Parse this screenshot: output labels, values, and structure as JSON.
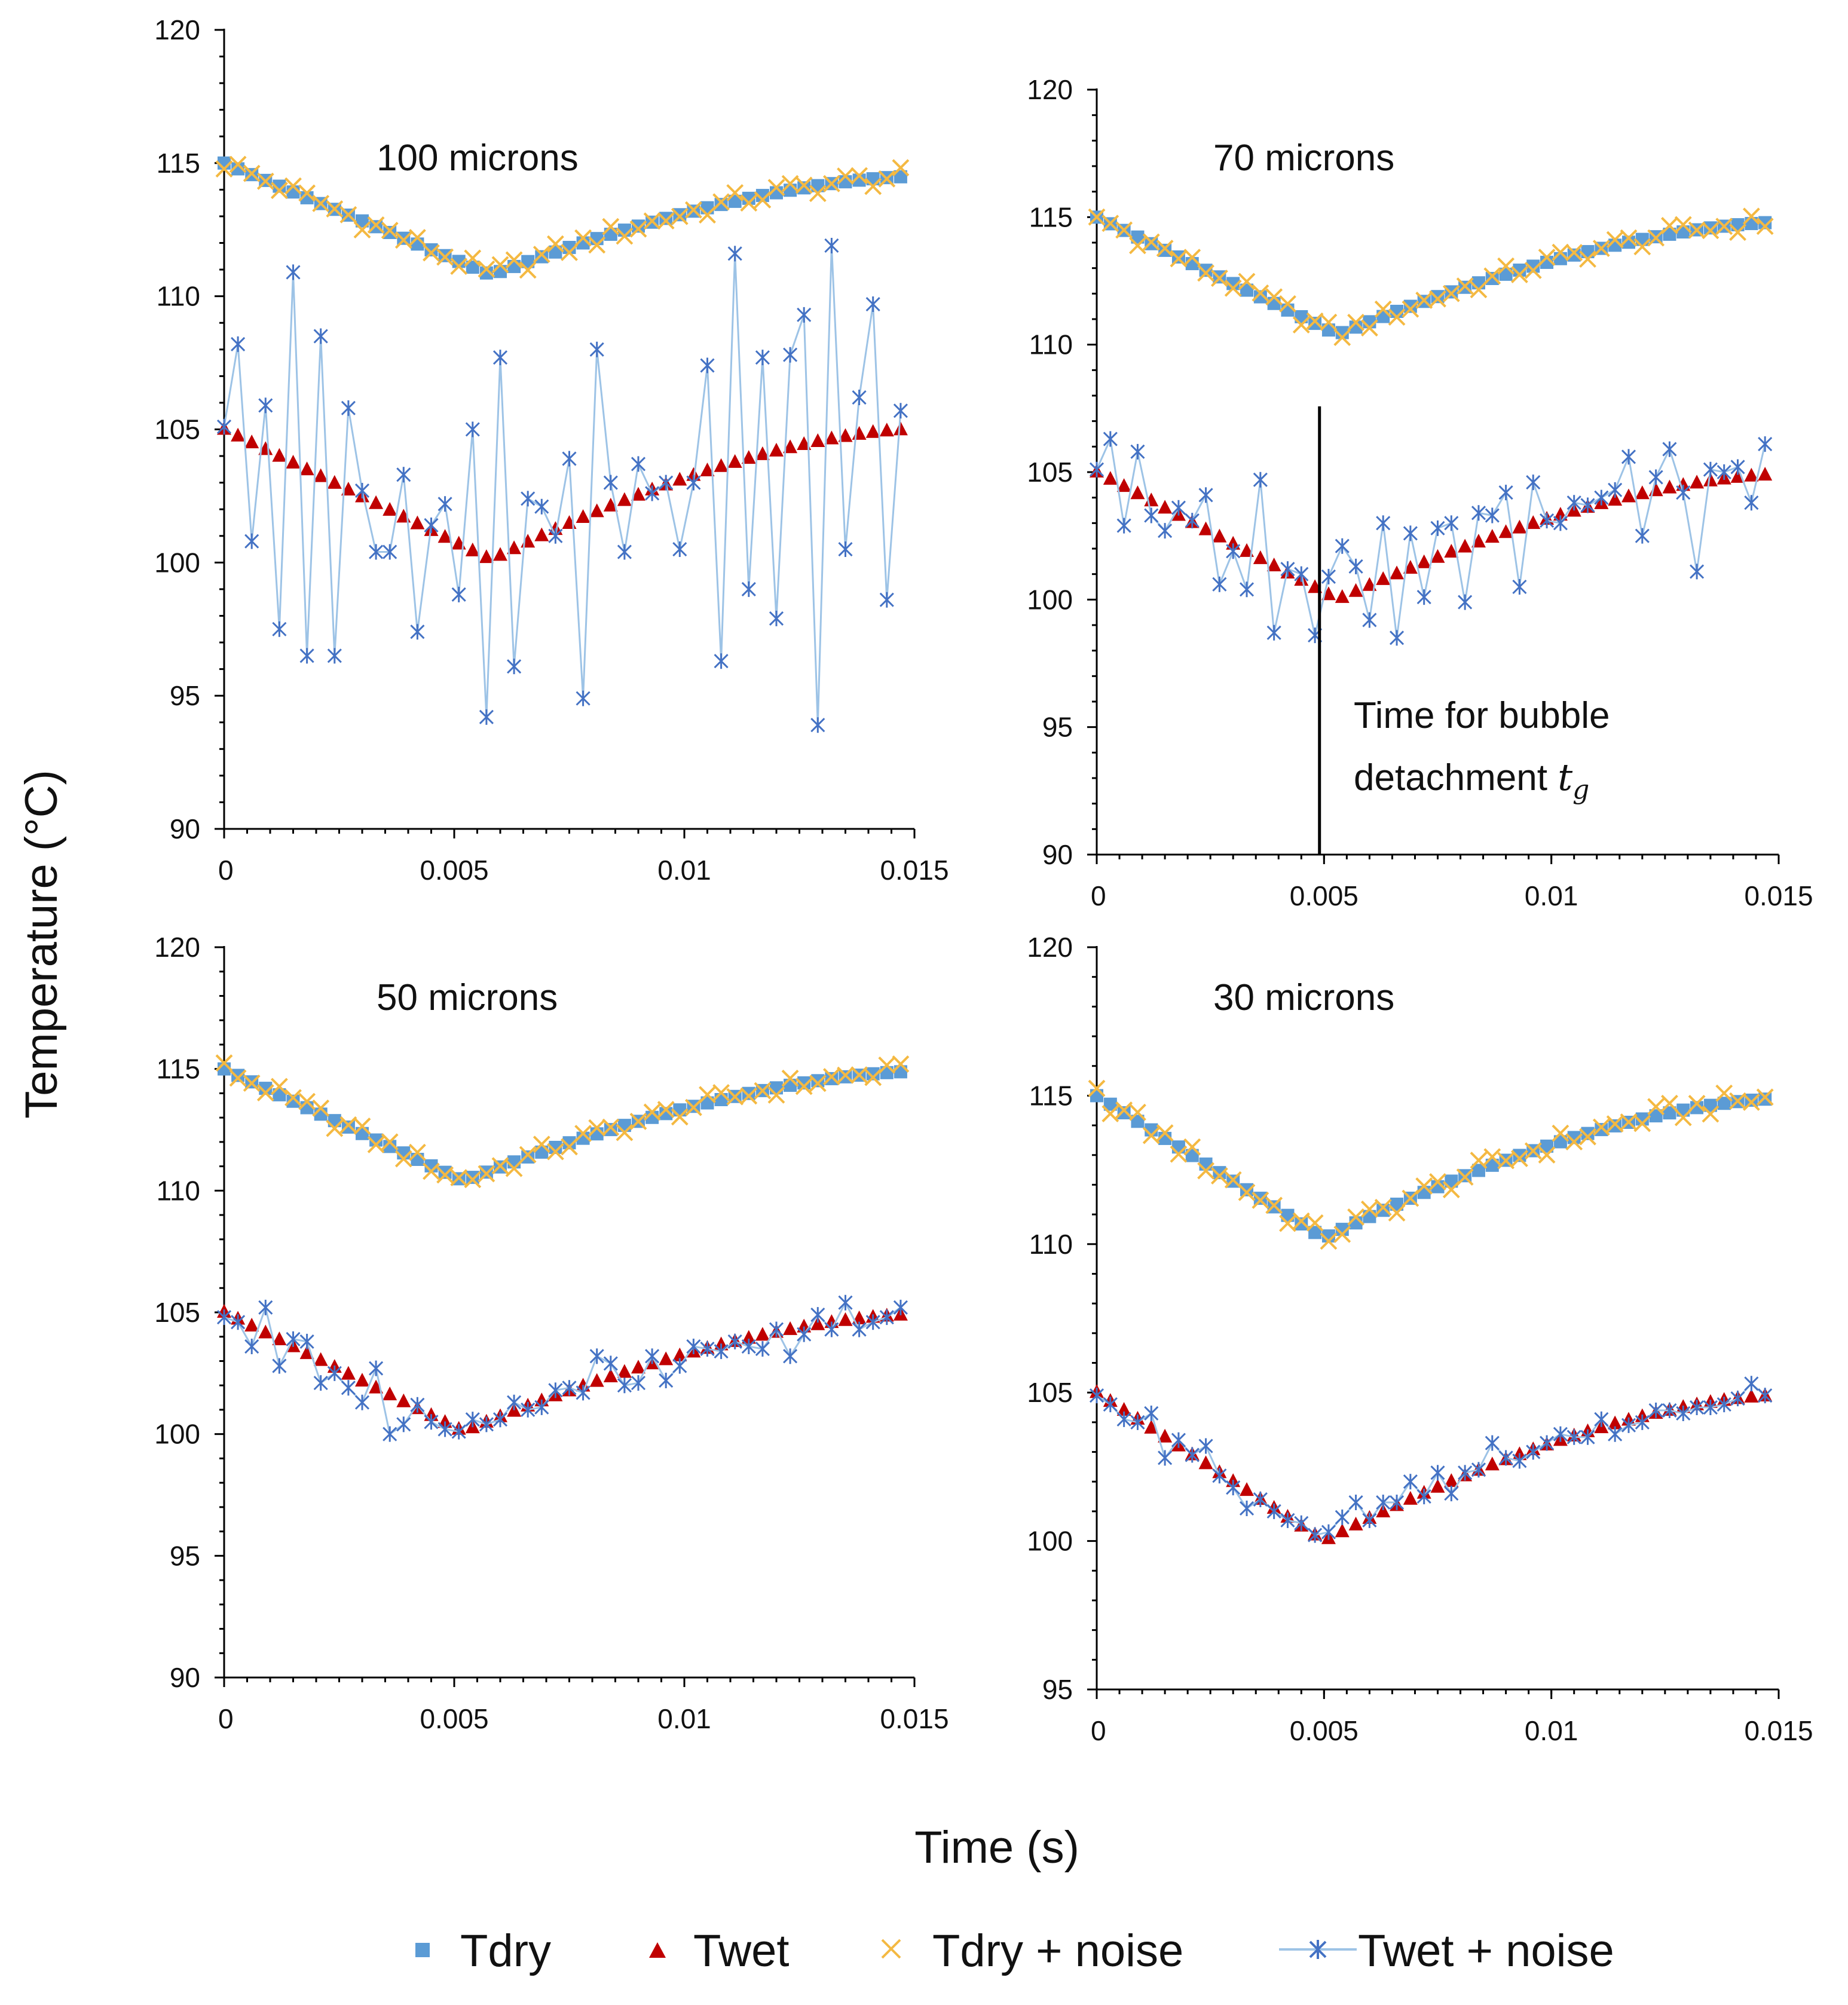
{
  "colors": {
    "tdry": "#5b9bd5",
    "twet": "#c00000",
    "tdry_noise": "#f4b942",
    "twet_noise_line": "#9dc3e6",
    "twet_noise_marker": "#4472c4"
  },
  "chart_data": [
    {
      "type": "scatter",
      "title": "100 microns",
      "xlim": [
        0,
        0.015
      ],
      "ylim": [
        90,
        120
      ],
      "yticks": [
        90,
        95,
        100,
        105,
        110,
        115,
        120
      ],
      "xticks": [
        0,
        0.005,
        0.01,
        0.015
      ],
      "xticklabels": [
        "0",
        "0.005",
        "0.01",
        "0.015"
      ],
      "t_min": 0.0058,
      "tdry_start": 115,
      "tdry_min": 110.8,
      "tdry_end": 114.5,
      "twet_start": 105,
      "twet_min": 100.1,
      "twet_end": 105,
      "twet_noise": [
        [
          0,
          105.1
        ],
        [
          0.0003,
          108.2
        ],
        [
          0.0006,
          100.8
        ],
        [
          0.0009,
          105.9
        ],
        [
          0.0012,
          97.5
        ],
        [
          0.0015,
          110.9
        ],
        [
          0.0018,
          96.5
        ],
        [
          0.0021,
          108.5
        ],
        [
          0.0024,
          96.5
        ],
        [
          0.0027,
          105.8
        ],
        [
          0.003,
          102.7
        ],
        [
          0.0033,
          100.4
        ],
        [
          0.0036,
          100.4
        ],
        [
          0.0039,
          103.3
        ],
        [
          0.0042,
          97.4
        ],
        [
          0.0045,
          101.4
        ],
        [
          0.0048,
          102.2
        ],
        [
          0.0051,
          98.8
        ],
        [
          0.0054,
          105.0
        ],
        [
          0.0057,
          94.2
        ],
        [
          0.006,
          107.7
        ],
        [
          0.0063,
          96.1
        ],
        [
          0.0066,
          102.4
        ],
        [
          0.0069,
          102.1
        ],
        [
          0.0072,
          101.0
        ],
        [
          0.0075,
          103.9
        ],
        [
          0.0078,
          94.9
        ],
        [
          0.0081,
          108.0
        ],
        [
          0.0084,
          103.0
        ],
        [
          0.0087,
          100.4
        ],
        [
          0.009,
          103.7
        ],
        [
          0.0093,
          102.6
        ],
        [
          0.0096,
          103.0
        ],
        [
          0.0099,
          100.5
        ],
        [
          0.0102,
          103.0
        ],
        [
          0.0105,
          107.4
        ],
        [
          0.0108,
          96.3
        ],
        [
          0.0111,
          111.6
        ],
        [
          0.0114,
          99.0
        ],
        [
          0.0117,
          107.7
        ],
        [
          0.012,
          97.9
        ],
        [
          0.0123,
          107.8
        ],
        [
          0.0126,
          109.3
        ],
        [
          0.0129,
          93.9
        ],
        [
          0.0132,
          111.9
        ],
        [
          0.0135,
          100.5
        ],
        [
          0.0138,
          106.2
        ],
        [
          0.0141,
          109.7
        ],
        [
          0.0144,
          98.6
        ],
        [
          0.0147,
          105.7
        ]
      ]
    },
    {
      "type": "scatter",
      "title": "70 microns",
      "xlim": [
        0,
        0.015
      ],
      "ylim": [
        90,
        120
      ],
      "yticks": [
        90,
        95,
        100,
        105,
        110,
        115,
        120
      ],
      "xticks": [
        0,
        0.005,
        0.01,
        0.015
      ],
      "xticklabels": [
        "0",
        "0.005",
        "0.01",
        "0.015"
      ],
      "t_min": 0.0053,
      "tdry_start": 115,
      "tdry_min": 110.4,
      "tdry_end": 114.8,
      "twet_start": 105,
      "twet_min": 100.0,
      "twet_end": 104.9,
      "vline_x": 0.0049,
      "annotation_line1": "Time for bubble",
      "annotation_line2": "detachment ",
      "annotation_symbol": "t",
      "annotation_sub": "g",
      "twet_noise": [
        [
          0,
          105.1
        ],
        [
          0.0003,
          106.3
        ],
        [
          0.0006,
          102.9
        ],
        [
          0.0009,
          105.8
        ],
        [
          0.0012,
          103.3
        ],
        [
          0.0015,
          102.7
        ],
        [
          0.0018,
          103.6
        ],
        [
          0.0021,
          103.1
        ],
        [
          0.0024,
          104.1
        ],
        [
          0.0027,
          100.6
        ],
        [
          0.003,
          101.9
        ],
        [
          0.0033,
          100.4
        ],
        [
          0.0036,
          104.7
        ],
        [
          0.0039,
          98.7
        ],
        [
          0.0042,
          101.2
        ],
        [
          0.0045,
          101.0
        ],
        [
          0.0048,
          98.6
        ],
        [
          0.0051,
          100.9
        ],
        [
          0.0054,
          102.1
        ],
        [
          0.0057,
          101.3
        ],
        [
          0.006,
          99.2
        ],
        [
          0.0063,
          103.0
        ],
        [
          0.0066,
          98.5
        ],
        [
          0.0069,
          102.6
        ],
        [
          0.0072,
          100.1
        ],
        [
          0.0075,
          102.8
        ],
        [
          0.0078,
          103.0
        ],
        [
          0.0081,
          99.9
        ],
        [
          0.0084,
          103.4
        ],
        [
          0.0087,
          103.3
        ],
        [
          0.009,
          104.2
        ],
        [
          0.0093,
          100.5
        ],
        [
          0.0096,
          104.6
        ],
        [
          0.0099,
          103.1
        ],
        [
          0.0102,
          103.0
        ],
        [
          0.0105,
          103.8
        ],
        [
          0.0108,
          103.7
        ],
        [
          0.0111,
          104.0
        ],
        [
          0.0114,
          104.3
        ],
        [
          0.0117,
          105.6
        ],
        [
          0.012,
          102.5
        ],
        [
          0.0123,
          104.8
        ],
        [
          0.0126,
          105.9
        ],
        [
          0.0129,
          104.2
        ],
        [
          0.0132,
          101.1
        ],
        [
          0.0135,
          105.1
        ],
        [
          0.0138,
          105.0
        ],
        [
          0.0141,
          105.2
        ],
        [
          0.0144,
          103.8
        ],
        [
          0.0147,
          106.1
        ]
      ]
    },
    {
      "type": "scatter",
      "title": "50 microns",
      "xlim": [
        0,
        0.015
      ],
      "ylim": [
        90,
        120
      ],
      "yticks": [
        90,
        95,
        100,
        105,
        110,
        115,
        120
      ],
      "xticks": [
        0,
        0.005,
        0.01,
        0.015
      ],
      "xticklabels": [
        "0",
        "0.005",
        "0.01",
        "0.015"
      ],
      "t_min": 0.0052,
      "tdry_start": 115,
      "tdry_min": 110.4,
      "tdry_end": 114.9,
      "twet_start": 105,
      "twet_min": 100.1,
      "twet_end": 104.9,
      "twet_noise": [
        [
          0,
          104.8
        ],
        [
          0.0003,
          104.6
        ],
        [
          0.0006,
          103.6
        ],
        [
          0.0009,
          105.2
        ],
        [
          0.0012,
          102.8
        ],
        [
          0.0015,
          103.9
        ],
        [
          0.0018,
          103.8
        ],
        [
          0.0021,
          102.1
        ],
        [
          0.0024,
          102.5
        ],
        [
          0.0027,
          101.9
        ],
        [
          0.003,
          101.3
        ],
        [
          0.0033,
          102.7
        ],
        [
          0.0036,
          100.0
        ],
        [
          0.0039,
          100.4
        ],
        [
          0.0042,
          101.2
        ],
        [
          0.0045,
          100.5
        ],
        [
          0.0048,
          100.2
        ],
        [
          0.0051,
          100.1
        ],
        [
          0.0054,
          100.6
        ],
        [
          0.0057,
          100.4
        ],
        [
          0.006,
          100.6
        ],
        [
          0.0063,
          101.3
        ],
        [
          0.0066,
          101.0
        ],
        [
          0.0069,
          101.1
        ],
        [
          0.0072,
          101.8
        ],
        [
          0.0075,
          101.9
        ],
        [
          0.0078,
          101.7
        ],
        [
          0.0081,
          103.2
        ],
        [
          0.0084,
          102.9
        ],
        [
          0.0087,
          102.0
        ],
        [
          0.009,
          102.1
        ],
        [
          0.0093,
          103.2
        ],
        [
          0.0096,
          102.2
        ],
        [
          0.0099,
          102.8
        ],
        [
          0.0102,
          103.6
        ],
        [
          0.0105,
          103.5
        ],
        [
          0.0108,
          103.4
        ],
        [
          0.0111,
          103.8
        ],
        [
          0.0114,
          103.6
        ],
        [
          0.0117,
          103.5
        ],
        [
          0.012,
          104.3
        ],
        [
          0.0123,
          103.2
        ],
        [
          0.0126,
          104.1
        ],
        [
          0.0129,
          104.9
        ],
        [
          0.0132,
          104.3
        ],
        [
          0.0135,
          105.4
        ],
        [
          0.0138,
          104.3
        ],
        [
          0.0141,
          104.6
        ],
        [
          0.0144,
          104.8
        ],
        [
          0.0147,
          105.2
        ]
      ]
    },
    {
      "type": "scatter",
      "title": "30 microns",
      "xlim": [
        0,
        0.015
      ],
      "ylim": [
        95,
        120
      ],
      "yticks": [
        95,
        100,
        105,
        110,
        115,
        120
      ],
      "xticks": [
        0,
        0.005,
        0.01,
        0.015
      ],
      "xticklabels": [
        "0",
        "0.005",
        "0.01",
        "0.015"
      ],
      "t_min": 0.005,
      "tdry_start": 115,
      "tdry_min": 110.2,
      "tdry_end": 114.9,
      "twet_start": 105,
      "twet_min": 100.0,
      "twet_end": 104.9,
      "twet_noise": [
        [
          0,
          104.9
        ],
        [
          0.0003,
          104.6
        ],
        [
          0.0006,
          104.1
        ],
        [
          0.0009,
          104.0
        ],
        [
          0.0012,
          104.3
        ],
        [
          0.0015,
          102.8
        ],
        [
          0.0018,
          103.4
        ],
        [
          0.0021,
          102.9
        ],
        [
          0.0024,
          103.2
        ],
        [
          0.0027,
          102.2
        ],
        [
          0.003,
          101.8
        ],
        [
          0.0033,
          101.1
        ],
        [
          0.0036,
          101.4
        ],
        [
          0.0039,
          101.0
        ],
        [
          0.0042,
          100.7
        ],
        [
          0.0045,
          100.6
        ],
        [
          0.0048,
          100.2
        ],
        [
          0.0051,
          100.3
        ],
        [
          0.0054,
          100.8
        ],
        [
          0.0057,
          101.3
        ],
        [
          0.006,
          100.7
        ],
        [
          0.0063,
          101.3
        ],
        [
          0.0066,
          101.3
        ],
        [
          0.0069,
          102.0
        ],
        [
          0.0072,
          101.5
        ],
        [
          0.0075,
          102.3
        ],
        [
          0.0078,
          101.6
        ],
        [
          0.0081,
          102.3
        ],
        [
          0.0084,
          102.4
        ],
        [
          0.0087,
          103.3
        ],
        [
          0.009,
          102.8
        ],
        [
          0.0093,
          102.7
        ],
        [
          0.0096,
          103.0
        ],
        [
          0.0099,
          103.3
        ],
        [
          0.0102,
          103.6
        ],
        [
          0.0105,
          103.5
        ],
        [
          0.0108,
          103.5
        ],
        [
          0.0111,
          104.1
        ],
        [
          0.0114,
          103.6
        ],
        [
          0.0117,
          103.9
        ],
        [
          0.012,
          104.0
        ],
        [
          0.0123,
          104.4
        ],
        [
          0.0126,
          104.4
        ],
        [
          0.0129,
          104.3
        ],
        [
          0.0132,
          104.5
        ],
        [
          0.0135,
          104.5
        ],
        [
          0.0138,
          104.6
        ],
        [
          0.0141,
          104.8
        ],
        [
          0.0144,
          105.3
        ],
        [
          0.0147,
          104.9
        ]
      ]
    }
  ],
  "y_axis_title": "Temperature (°C)",
  "x_axis_title": "Time (s)",
  "legend": [
    {
      "label": "Tdry",
      "key": "tdry"
    },
    {
      "label": "Twet",
      "key": "twet"
    },
    {
      "label": "Tdry + noise",
      "key": "tdry_noise"
    },
    {
      "label": "Twet + noise",
      "key": "twet_noise"
    }
  ]
}
